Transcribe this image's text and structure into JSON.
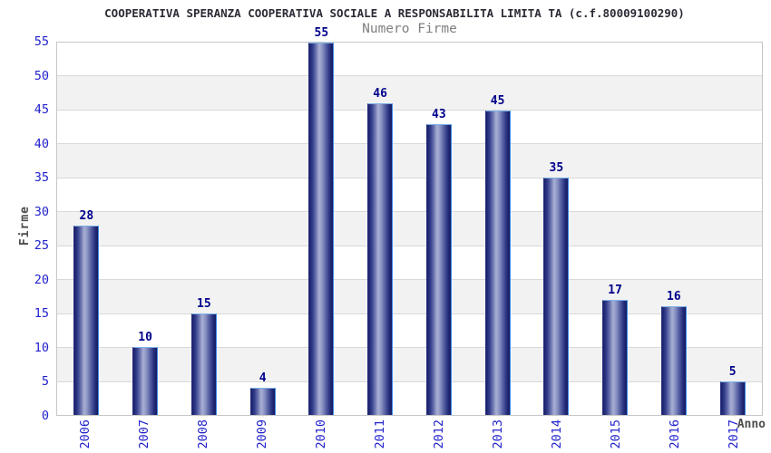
{
  "title": "COOPERATIVA SPERANZA COOPERATIVA SOCIALE A RESPONSABILITA LIMITA TA (c.f.80009100290)",
  "subtitle": "Numero Firme",
  "chart_data": {
    "type": "bar",
    "title": "Numero Firme",
    "categories": [
      "2006",
      "2007",
      "2008",
      "2009",
      "2010",
      "2011",
      "2012",
      "2013",
      "2014",
      "2015",
      "2016",
      "2017"
    ],
    "values": [
      28,
      10,
      15,
      4,
      55,
      46,
      43,
      45,
      35,
      17,
      16,
      5
    ],
    "xlabel": "Anno",
    "ylabel": "Firme",
    "ylim": [
      0,
      55
    ],
    "yticks": [
      0,
      5,
      10,
      15,
      20,
      25,
      30,
      35,
      40,
      45,
      50,
      55
    ],
    "legend_position": "none",
    "grid": "horizontal alternating bands every 5 units",
    "colors": {
      "bar_dark": "#1a2068",
      "bar_highlight": "#a9b0d4",
      "bar_border_light": "#7cb1e8",
      "value_label": "#00008b",
      "axis_tick_label": "#2222cc",
      "axis_title": "#4d4d4d",
      "band_gray": "#f2f2f2",
      "grid_line": "#d9d9d9",
      "title_color": "#2b2b36",
      "subtitle_color": "#7f7f7f"
    }
  }
}
